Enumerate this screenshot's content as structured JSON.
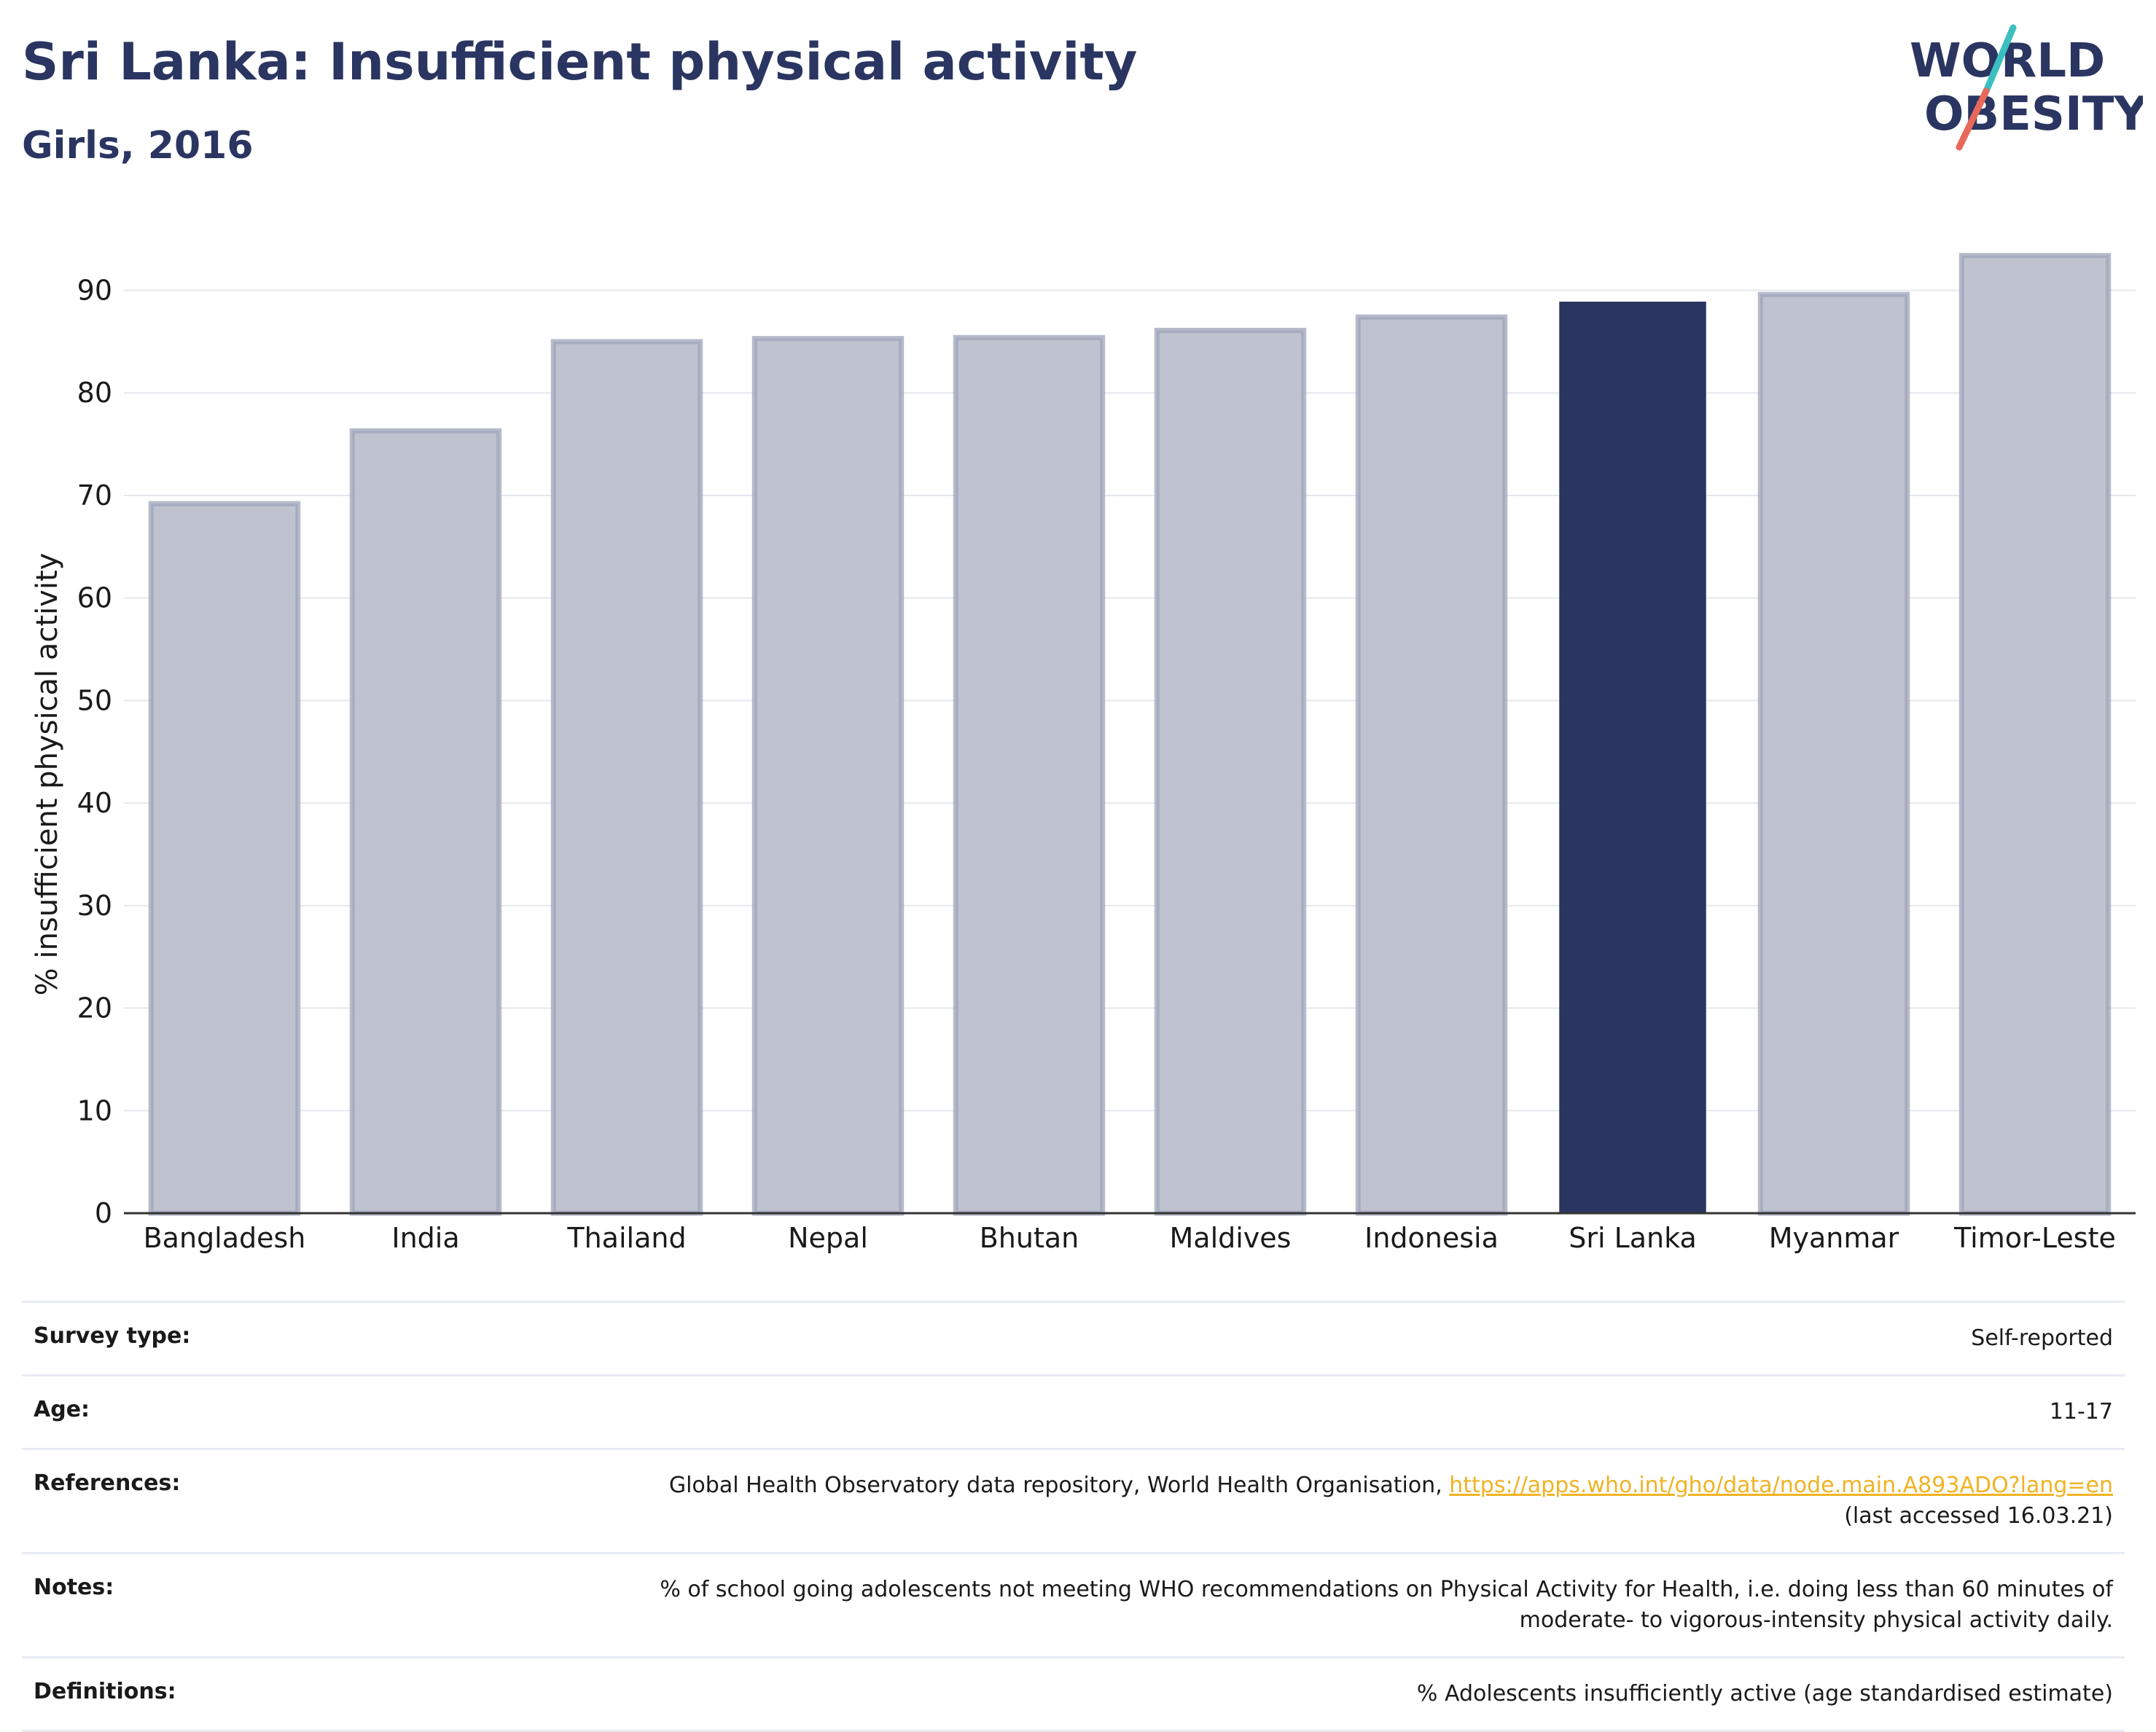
{
  "title": "Sri Lanka: Insufficient physical activity",
  "subtitle": "Girls, 2016",
  "logo": {
    "line1": "WORLD",
    "line2": "OBESITY",
    "icon": "world-obesity-logo",
    "colors": {
      "text": "#2a3561",
      "slash_top": "#3cbfbf",
      "slash_bottom": "#e8685a"
    }
  },
  "colors": {
    "highlight_bar": "#2a3561",
    "other_bar": "#bfc3cf",
    "other_bar_border": "#9ea4ba",
    "grid": "#e6e8ee",
    "link": "#f0b323"
  },
  "chart_data": {
    "type": "bar",
    "categories": [
      "Bangladesh",
      "India",
      "Thailand",
      "Nepal",
      "Bhutan",
      "Maldives",
      "Indonesia",
      "Sri Lanka",
      "Myanmar",
      "Timor-Leste"
    ],
    "values": [
      69.2,
      76.3,
      85.0,
      85.3,
      85.4,
      86.1,
      87.4,
      88.9,
      89.6,
      93.4
    ],
    "highlight": "Sri Lanka",
    "xlabel": "",
    "ylabel": "% insufficient physical activity",
    "ylim": [
      0,
      97
    ],
    "yticks": [
      0,
      10,
      20,
      30,
      40,
      50,
      60,
      70,
      80,
      90
    ],
    "grid": true,
    "legend": "none"
  },
  "info": {
    "survey_type": {
      "label": "Survey type:",
      "value": "Self-reported"
    },
    "age": {
      "label": "Age:",
      "value": "11-17"
    },
    "references": {
      "label": "References:",
      "text": "Global Health Observatory data repository, World Health Organisation, ",
      "link": "https://apps.who.int/gho/data/node.main.A893ADO?lang=en",
      "accessed": "(last accessed 16.03.21)"
    },
    "notes": {
      "label": "Notes:",
      "line1": "% of school going adolescents not meeting WHO recommendations on Physical Activity for Health, i.e. doing less than 60 minutes of",
      "line2": "moderate- to vigorous-intensity physical activity daily."
    },
    "definitions": {
      "label": "Definitions:",
      "value": "% Adolescents insufficiently active (age standardised estimate)"
    }
  }
}
